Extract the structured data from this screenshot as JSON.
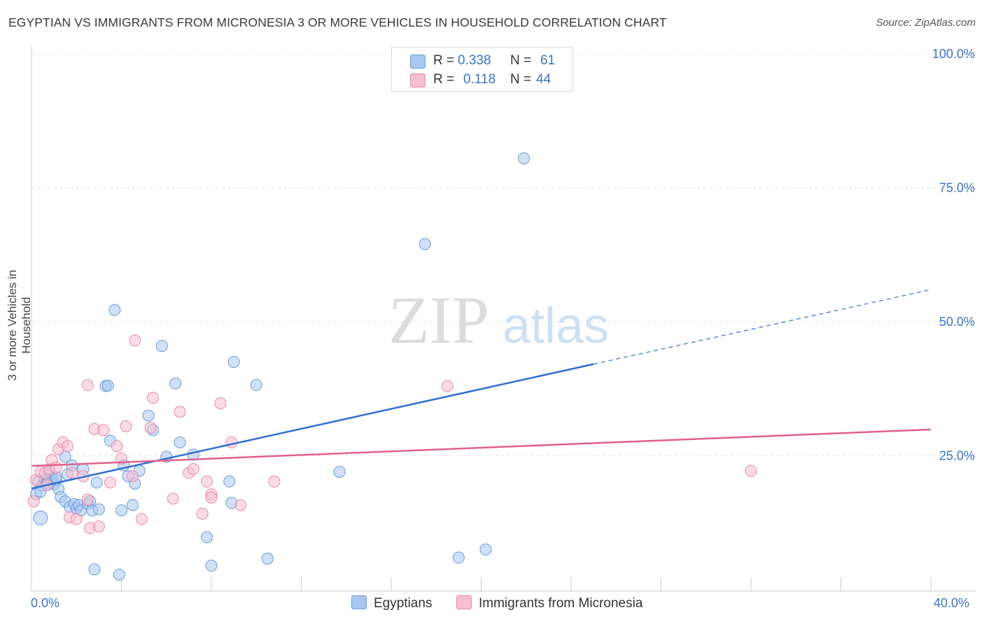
{
  "title": "EGYPTIAN VS IMMIGRANTS FROM MICRONESIA 3 OR MORE VEHICLES IN HOUSEHOLD CORRELATION CHART",
  "source": "Source: ZipAtlas.com",
  "watermark": {
    "zip": "ZIP",
    "atlas": "atlas"
  },
  "legend": {
    "rows": [
      {
        "r_label": "R =",
        "r_value": "0.338",
        "n_label": "N =",
        "n_value": "61",
        "color": "#a9c8f0",
        "border": "#6a9bd8"
      },
      {
        "r_label": "R =",
        "r_value": "0.118",
        "n_label": "N =",
        "n_value": "44",
        "color": "#f7bdd0",
        "border": "#e68aab"
      }
    ]
  },
  "bottom_legend": [
    {
      "label": "Egyptians",
      "color": "#a9c8f0",
      "border": "#6a9bd8"
    },
    {
      "label": "Immigrants from Micronesia",
      "color": "#f7bdd0",
      "border": "#e68aab"
    }
  ],
  "chart_data": {
    "type": "scatter",
    "title": "EGYPTIAN VS IMMIGRANTS FROM MICRONESIA 3 OR MORE VEHICLES IN HOUSEHOLD CORRELATION CHART",
    "xlabel": "",
    "ylabel": "3 or more Vehicles in Household",
    "xlim": [
      0,
      40
    ],
    "ylim": [
      0,
      100
    ],
    "x_tick_labels": [
      "0.0%",
      "40.0%"
    ],
    "y_tick_labels": [
      "100.0%",
      "75.0%",
      "50.0%",
      "25.0%"
    ],
    "y_ticks": [
      100,
      75,
      50,
      25
    ],
    "grid": true,
    "series": [
      {
        "name": "Egyptians",
        "color": "#a9c8f0",
        "stroke": "#6a9bd8",
        "trend": {
          "x0": 0,
          "y0": 18.9,
          "x1": 25,
          "y1": 42.1,
          "dash_to_x": 40,
          "dash_to_y": 56.0,
          "color": "#2f6fcf"
        },
        "points": [
          [
            0.2,
            17.8
          ],
          [
            0.3,
            20.2
          ],
          [
            0.4,
            13.4
          ],
          [
            0.5,
            19.5
          ],
          [
            0.6,
            20.6
          ],
          [
            0.7,
            21.4
          ],
          [
            0.8,
            22.0
          ],
          [
            0.9,
            20.7
          ],
          [
            1.0,
            19.7
          ],
          [
            1.1,
            20.5
          ],
          [
            1.2,
            18.8
          ],
          [
            1.3,
            17.3
          ],
          [
            1.5,
            16.5
          ],
          [
            1.5,
            24.8
          ],
          [
            1.6,
            21.5
          ],
          [
            1.7,
            15.5
          ],
          [
            1.8,
            23.2
          ],
          [
            1.9,
            16.0
          ],
          [
            2.0,
            15.2
          ],
          [
            2.1,
            15.8
          ],
          [
            2.2,
            14.8
          ],
          [
            2.3,
            22.5
          ],
          [
            2.5,
            16.0
          ],
          [
            2.6,
            16.5
          ],
          [
            2.7,
            14.8
          ],
          [
            2.8,
            3.8
          ],
          [
            2.9,
            20.0
          ],
          [
            3.0,
            15.0
          ],
          [
            3.3,
            38.0
          ],
          [
            3.5,
            27.8
          ],
          [
            3.7,
            52.2
          ],
          [
            3.9,
            2.8
          ],
          [
            4.0,
            14.8
          ],
          [
            4.1,
            23.2
          ],
          [
            4.3,
            21.2
          ],
          [
            4.5,
            15.8
          ],
          [
            4.6,
            19.8
          ],
          [
            4.8,
            22.2
          ],
          [
            5.2,
            32.5
          ],
          [
            5.4,
            29.8
          ],
          [
            5.8,
            45.5
          ],
          [
            6.0,
            24.8
          ],
          [
            6.4,
            38.5
          ],
          [
            6.6,
            27.5
          ],
          [
            7.2,
            25.2
          ],
          [
            7.8,
            9.8
          ],
          [
            8.0,
            4.5
          ],
          [
            8.8,
            20.2
          ],
          [
            8.9,
            16.2
          ],
          [
            9.0,
            42.5
          ],
          [
            10.0,
            38.2
          ],
          [
            10.5,
            5.8
          ],
          [
            13.7,
            22.0
          ],
          [
            17.5,
            64.5
          ],
          [
            19.0,
            6.0
          ],
          [
            20.2,
            7.5
          ],
          [
            21.9,
            80.5
          ],
          [
            3.4,
            38.1
          ],
          [
            1.1,
            21.0
          ],
          [
            0.4,
            18.3
          ],
          [
            0.7,
            19.8
          ]
        ]
      },
      {
        "name": "Immigrants from Micronesia",
        "color": "#f7bdd0",
        "stroke": "#e68aab",
        "trend": {
          "x0": 0,
          "y0": 23.1,
          "x1": 40,
          "y1": 29.9,
          "color": "#e0608e"
        },
        "points": [
          [
            0.1,
            16.5
          ],
          [
            0.2,
            20.5
          ],
          [
            0.4,
            22.0
          ],
          [
            0.6,
            21.8
          ],
          [
            0.7,
            19.5
          ],
          [
            0.8,
            22.5
          ],
          [
            0.9,
            24.2
          ],
          [
            1.1,
            22.8
          ],
          [
            1.2,
            26.2
          ],
          [
            1.4,
            27.5
          ],
          [
            1.6,
            26.8
          ],
          [
            1.7,
            13.5
          ],
          [
            1.8,
            21.8
          ],
          [
            2.0,
            13.2
          ],
          [
            2.3,
            21.2
          ],
          [
            2.5,
            16.8
          ],
          [
            2.5,
            38.2
          ],
          [
            2.6,
            11.5
          ],
          [
            2.8,
            30.0
          ],
          [
            3.0,
            11.8
          ],
          [
            3.2,
            29.8
          ],
          [
            3.5,
            20.0
          ],
          [
            3.8,
            26.8
          ],
          [
            4.0,
            24.5
          ],
          [
            4.2,
            30.5
          ],
          [
            4.5,
            21.2
          ],
          [
            4.6,
            46.5
          ],
          [
            4.9,
            13.2
          ],
          [
            5.3,
            30.2
          ],
          [
            5.4,
            35.8
          ],
          [
            6.3,
            17.0
          ],
          [
            6.6,
            33.2
          ],
          [
            7.0,
            21.8
          ],
          [
            7.2,
            22.5
          ],
          [
            7.6,
            14.2
          ],
          [
            7.8,
            20.2
          ],
          [
            8.0,
            17.8
          ],
          [
            8.4,
            34.8
          ],
          [
            8.0,
            17.2
          ],
          [
            8.9,
            27.5
          ],
          [
            9.3,
            15.8
          ],
          [
            10.8,
            20.2
          ],
          [
            18.5,
            38.0
          ],
          [
            32.0,
            22.2
          ]
        ]
      }
    ]
  }
}
